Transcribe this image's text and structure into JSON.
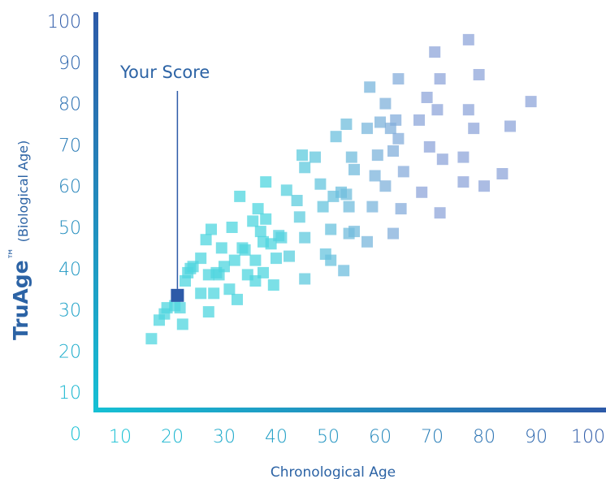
{
  "chart_data": {
    "type": "scatter",
    "xlabel": "Chronological Age",
    "ylabel_main": "TruAge",
    "ylabel_tm": "™",
    "ylabel_sub": "(Biological Age)",
    "annotation": "Your Score",
    "xlim": [
      5,
      100
    ],
    "ylim": [
      0,
      100
    ],
    "x_ticks": [
      10,
      20,
      30,
      40,
      50,
      60,
      70,
      80,
      90,
      100
    ],
    "y_ticks": [
      0,
      10,
      20,
      30,
      40,
      50,
      60,
      70,
      80,
      90,
      100
    ],
    "your_score": {
      "x": 21,
      "y": 33.5
    },
    "colors": {
      "axis_top": "#2d5aa8",
      "axis_bottom": "#16c0d4",
      "young": "#4fd6df",
      "old": "#8fa6da",
      "your_score": "#2d5aa8",
      "text": "#2c63a5"
    },
    "points": [
      [
        16,
        23
      ],
      [
        17.5,
        27.5
      ],
      [
        18.5,
        29
      ],
      [
        19,
        30.5
      ],
      [
        20.5,
        31
      ],
      [
        21.5,
        30.5
      ],
      [
        22,
        26.5
      ],
      [
        22.5,
        37
      ],
      [
        23,
        39
      ],
      [
        23.5,
        40
      ],
      [
        24,
        40.5
      ],
      [
        25.5,
        42.5
      ],
      [
        25.5,
        34
      ],
      [
        26.5,
        47
      ],
      [
        27,
        38.5
      ],
      [
        27,
        29.5
      ],
      [
        27.5,
        49.5
      ],
      [
        28,
        34
      ],
      [
        28.5,
        39
      ],
      [
        29,
        38.5
      ],
      [
        29.5,
        45
      ],
      [
        30,
        40.5
      ],
      [
        31,
        35
      ],
      [
        31.5,
        50
      ],
      [
        32,
        42
      ],
      [
        32.5,
        32.5
      ],
      [
        33,
        57.5
      ],
      [
        33.5,
        45
      ],
      [
        34,
        44.5
      ],
      [
        34.5,
        38.5
      ],
      [
        35.5,
        51.5
      ],
      [
        36,
        42
      ],
      [
        36,
        37
      ],
      [
        36.5,
        54.5
      ],
      [
        37,
        49
      ],
      [
        37.5,
        39
      ],
      [
        37.5,
        46.5
      ],
      [
        38,
        52
      ],
      [
        38,
        61
      ],
      [
        39,
        46
      ],
      [
        39.5,
        36
      ],
      [
        40,
        42.5
      ],
      [
        40.5,
        48
      ],
      [
        41,
        47.5
      ],
      [
        42,
        59
      ],
      [
        42.5,
        43
      ],
      [
        44,
        56.5
      ],
      [
        44.5,
        52.5
      ],
      [
        45,
        67.5
      ],
      [
        45.5,
        64.5
      ],
      [
        45.5,
        47.5
      ],
      [
        45.5,
        37.5
      ],
      [
        47.5,
        67
      ],
      [
        48.5,
        60.5
      ],
      [
        49,
        55
      ],
      [
        49.5,
        43.5
      ],
      [
        50.5,
        49.5
      ],
      [
        50.5,
        42
      ],
      [
        51,
        57.5
      ],
      [
        51.5,
        72
      ],
      [
        52.5,
        58.5
      ],
      [
        53,
        39.5
      ],
      [
        53.5,
        58
      ],
      [
        53.5,
        75
      ],
      [
        54,
        55
      ],
      [
        54,
        48.5
      ],
      [
        54.5,
        67
      ],
      [
        55,
        64
      ],
      [
        55,
        49
      ],
      [
        57.5,
        74
      ],
      [
        57.5,
        46.5
      ],
      [
        58,
        84
      ],
      [
        58.5,
        55
      ],
      [
        59,
        62.5
      ],
      [
        59.5,
        67.5
      ],
      [
        60,
        75.5
      ],
      [
        61,
        60
      ],
      [
        61,
        80
      ],
      [
        62,
        74
      ],
      [
        62.5,
        68.5
      ],
      [
        62.5,
        48.5
      ],
      [
        63,
        76
      ],
      [
        63.5,
        86
      ],
      [
        63.5,
        71.5
      ],
      [
        64,
        54.5
      ],
      [
        64.5,
        63.5
      ],
      [
        67.5,
        76
      ],
      [
        68,
        58.5
      ],
      [
        69,
        81.5
      ],
      [
        69.5,
        69.5
      ],
      [
        70.5,
        92.5
      ],
      [
        71,
        78.5
      ],
      [
        71.5,
        86
      ],
      [
        71.5,
        53.5
      ],
      [
        72,
        66.5
      ],
      [
        76,
        61
      ],
      [
        76,
        67
      ],
      [
        77,
        95.5
      ],
      [
        77,
        78.5
      ],
      [
        78,
        74
      ],
      [
        79,
        87
      ],
      [
        80,
        60
      ],
      [
        83.5,
        63
      ],
      [
        85,
        74.5
      ],
      [
        89,
        80.5
      ]
    ]
  }
}
